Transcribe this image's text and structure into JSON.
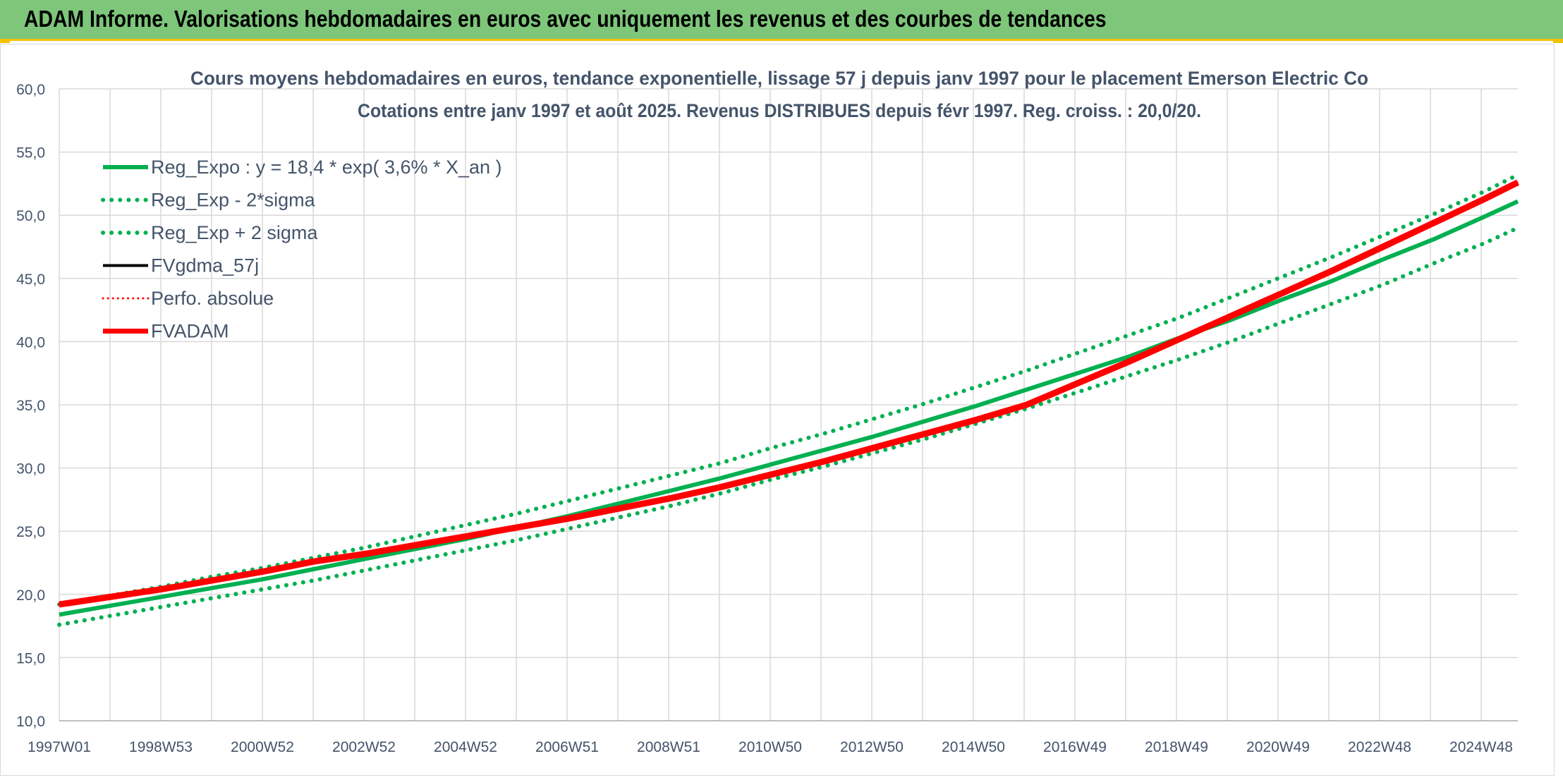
{
  "banner": {
    "title": "ADAM Informe. Valorisations hebdomadaires en euros avec uniquement les revenus et des courbes de tendances"
  },
  "colors": {
    "banner_bg": "#7dc67a",
    "accent_yellow": "#f2c200",
    "reg_green": "#00b050",
    "adam_red": "#ff0000",
    "black": "#000000",
    "grid": "#d9d9d9",
    "text": "#44546a"
  },
  "chart_data": {
    "type": "line",
    "title": "Cours moyens hebdomadaires en euros, tendance exponentielle, lissage 57 j depuis janv 1997 pour le placement Emerson Electric Co",
    "subtitle": "Cotations entre janv 1997 et août 2025. Revenus DISTRIBUES depuis févr 1997. Reg. croiss. : 20,0/20.",
    "xlabel": "",
    "ylabel": "",
    "ylim": [
      10,
      60
    ],
    "y_ticks": [
      "10,0",
      "15,0",
      "20,0",
      "25,0",
      "30,0",
      "35,0",
      "40,0",
      "45,0",
      "50,0",
      "55,0",
      "60,0"
    ],
    "x_range": [
      1997.0,
      2025.65
    ],
    "x_tick_labels": [
      "1997W01",
      "1998W53",
      "2000W52",
      "2002W52",
      "2004W52",
      "2006W51",
      "2008W51",
      "2010W50",
      "2012W50",
      "2014W50",
      "2016W49",
      "2018W49",
      "2020W49",
      "2022W48",
      "2024W48"
    ],
    "grid": true,
    "legend_position": "top-left",
    "x": [
      1997.0,
      1998.0,
      1999.0,
      2000.0,
      2001.0,
      2002.0,
      2003.0,
      2004.0,
      2005.0,
      2006.0,
      2007.0,
      2008.0,
      2009.0,
      2010.0,
      2011.0,
      2012.0,
      2013.0,
      2014.0,
      2015.0,
      2016.0,
      2017.0,
      2018.0,
      2019.0,
      2020.0,
      2021.0,
      2022.0,
      2023.0,
      2024.0,
      2025.0,
      2025.65
    ],
    "series": [
      {
        "name": "Reg_Expo : y = 18,4 * exp( 3,6% *  X_an )",
        "style": "solid",
        "color": "#00b050",
        "values": [
          18.4,
          19.1,
          19.8,
          20.5,
          21.2,
          22.0,
          22.8,
          23.6,
          24.4,
          25.3,
          26.2,
          27.2,
          28.2,
          29.2,
          30.3,
          31.4,
          32.5,
          33.7,
          34.9,
          36.2,
          37.5,
          38.8,
          40.3,
          41.7,
          43.3,
          44.8,
          46.5,
          48.1,
          49.9,
          51.1
        ]
      },
      {
        "name": "Reg_Exp - 2*sigma",
        "style": "dotted",
        "color": "#00b050",
        "values": [
          17.6,
          18.3,
          19.0,
          19.7,
          20.4,
          21.1,
          21.9,
          22.7,
          23.5,
          24.3,
          25.2,
          26.1,
          27.0,
          28.0,
          29.1,
          30.1,
          31.2,
          32.3,
          33.5,
          34.7,
          36.0,
          37.3,
          38.6,
          40.0,
          41.5,
          43.0,
          44.5,
          46.2,
          47.8,
          49.0
        ]
      },
      {
        "name": "Reg_Exp + 2 sigma",
        "style": "dotted",
        "color": "#00b050",
        "values": [
          19.2,
          19.9,
          20.6,
          21.4,
          22.1,
          22.9,
          23.7,
          24.6,
          25.5,
          26.4,
          27.4,
          28.4,
          29.4,
          30.4,
          31.6,
          32.7,
          33.9,
          35.1,
          36.4,
          37.7,
          39.1,
          40.5,
          41.9,
          43.5,
          45.1,
          46.7,
          48.4,
          50.1,
          51.9,
          53.2
        ]
      },
      {
        "name": "FVgdma_57j",
        "style": "solid",
        "color": "#000000",
        "values": [
          19.2,
          19.8,
          20.4,
          21.1,
          21.8,
          22.6,
          23.2,
          23.9,
          24.6,
          25.3,
          26.0,
          26.8,
          27.6,
          28.5,
          29.5,
          30.5,
          31.6,
          32.7,
          33.8,
          35.0,
          36.7,
          38.4,
          40.2,
          42.0,
          43.8,
          45.6,
          47.5,
          49.4,
          51.3,
          52.6
        ]
      },
      {
        "name": "Perfo. absolue",
        "style": "dotted",
        "color": "#ff0000",
        "values": [
          19.2,
          19.8,
          20.4,
          21.1,
          21.8,
          22.6,
          23.2,
          23.9,
          24.6,
          25.3,
          26.0,
          26.8,
          27.6,
          28.5,
          29.5,
          30.5,
          31.6,
          32.7,
          33.8,
          35.0,
          36.7,
          38.4,
          40.2,
          42.0,
          43.8,
          45.6,
          47.5,
          49.4,
          51.3,
          52.6
        ]
      },
      {
        "name": "FVADAM",
        "style": "solid",
        "color": "#ff0000",
        "values": [
          19.2,
          19.8,
          20.4,
          21.1,
          21.8,
          22.6,
          23.2,
          23.9,
          24.6,
          25.3,
          26.0,
          26.8,
          27.6,
          28.5,
          29.5,
          30.5,
          31.6,
          32.7,
          33.8,
          35.0,
          36.7,
          38.4,
          40.2,
          42.0,
          43.8,
          45.6,
          47.5,
          49.4,
          51.3,
          52.6
        ]
      }
    ]
  }
}
